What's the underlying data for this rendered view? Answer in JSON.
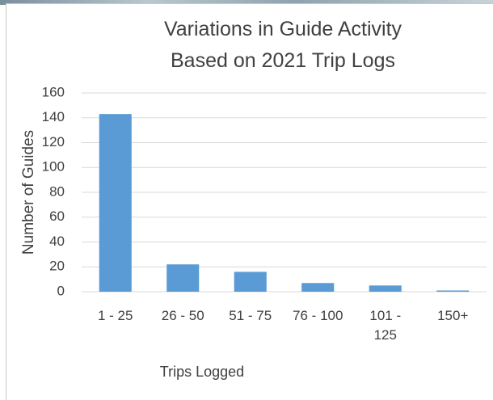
{
  "chart_data": {
    "type": "bar",
    "title": "Variations in Guide Activity Based on 2021 Trip Logs",
    "x_label": "Trips Logged",
    "y_label": "Number of Guides",
    "categories": [
      "1 - 25",
      "26 - 50",
      "51 - 75",
      "76 - 100",
      "101 - 125",
      "150+"
    ],
    "values": [
      143,
      22,
      16,
      7,
      5,
      1
    ],
    "color": "#5b9bd5",
    "ylim": [
      0,
      160
    ],
    "yticks": [
      0,
      20,
      40,
      60,
      80,
      100,
      120,
      140,
      160
    ],
    "grid": true
  }
}
